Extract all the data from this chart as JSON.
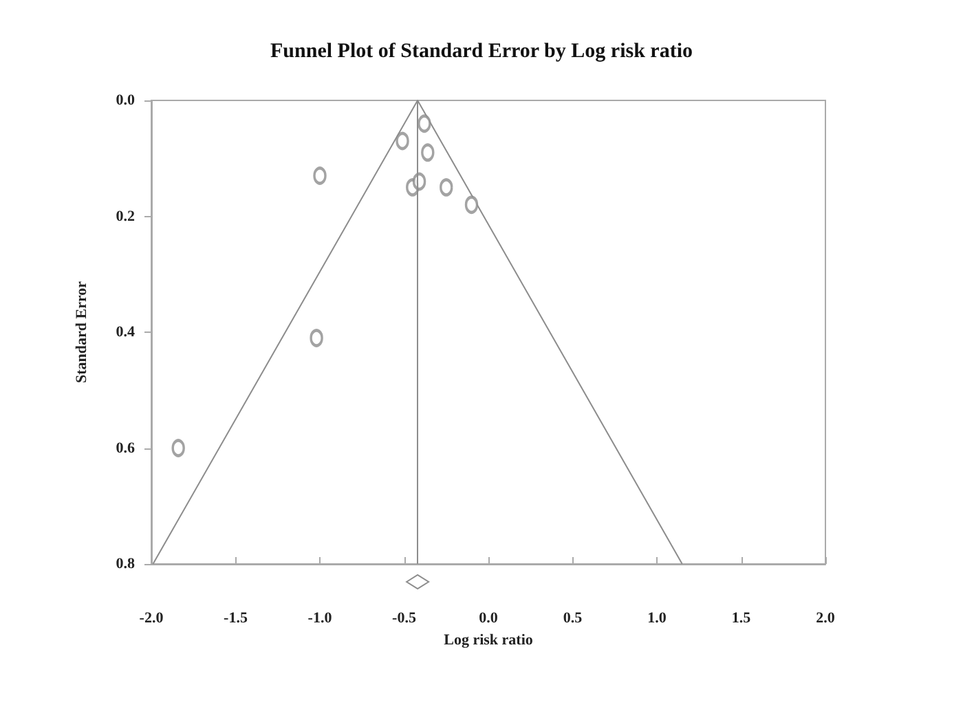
{
  "chart_data": {
    "type": "scatter",
    "title": "Funnel Plot of Standard Error by Log risk ratio",
    "xlabel": "Log risk ratio",
    "ylabel": "Standard Error",
    "xlim": [
      -2.0,
      2.0
    ],
    "xticks": [
      {
        "value": -2,
        "label": "-2.0"
      },
      {
        "value": -1.5,
        "label": "-1.5"
      },
      {
        "value": -1,
        "label": "-1.0"
      },
      {
        "value": -0.5,
        "label": "-0.5"
      },
      {
        "value": 0,
        "label": "0.0"
      },
      {
        "value": 0.5,
        "label": "0.5"
      },
      {
        "value": 1,
        "label": "1.0"
      },
      {
        "value": 1.5,
        "label": "1.5"
      },
      {
        "value": 2,
        "label": "2.0"
      }
    ],
    "ylim": [
      0.8,
      0.0
    ],
    "yticks": [
      {
        "value": 0,
        "label": "0.0"
      },
      {
        "value": 0.2,
        "label": "0.2"
      },
      {
        "value": 0.4,
        "label": "0.4"
      },
      {
        "value": 0.6,
        "label": "0.6"
      },
      {
        "value": 0.8,
        "label": "0.8"
      }
    ],
    "grid": false,
    "marker": "circle",
    "series": [
      {
        "color": "#8c8c8c",
        "x": [
          -0.38,
          -0.51,
          -0.36,
          -1.0,
          -0.45,
          -0.41,
          -0.25,
          -0.1,
          -1.02,
          -1.84
        ],
        "values": [
          0.04,
          0.07,
          0.09,
          0.13,
          0.15,
          0.14,
          0.15,
          0.18,
          0.41,
          0.6
        ]
      },
      {
        "type": "line",
        "color": "#8c8c8c",
        "marker": "none",
        "x": [
          -1.99,
          -0.42,
          1.15
        ],
        "values": [
          0.8,
          0.0,
          0.8
        ]
      }
    ],
    "ref_lines": [
      {
        "axis": "x",
        "value": -0.42,
        "label": null,
        "color": "#8c8c8c"
      }
    ]
  }
}
